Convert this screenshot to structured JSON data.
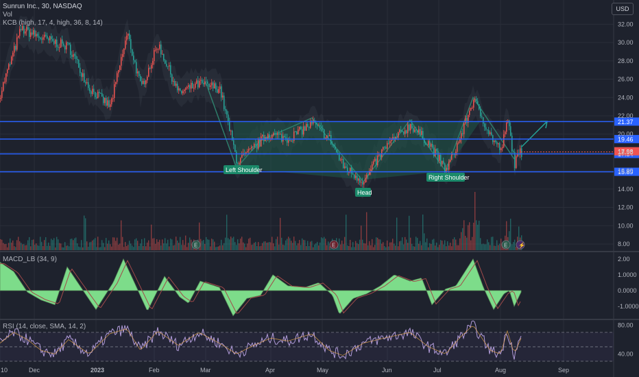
{
  "header": {
    "symbol_line": "Sunrun Inc., 30, NASDAQ",
    "vol_label": "Vol",
    "indicator_line": "KCB (high, 17, 4, high, 36, 8, 14)",
    "currency": "USD"
  },
  "indicators": {
    "macd_label": "MACD_LB (34, 9)",
    "rsi_label": "RSI (14, close, SMA, 14, 2)"
  },
  "colors": {
    "background": "#1e222d",
    "grid": "#2a2e39",
    "horizontal_line": "#2962ff",
    "up": "#ef5350",
    "down": "#26a69a",
    "pattern_fill": "#1f5a4a",
    "label_bg": "#1b8a6a",
    "macd_fill": "#7ddc8a",
    "rsi_line": "#b39ddb"
  },
  "chart_data": {
    "type": "candlestick",
    "title": "Sunrun Inc., 30, NASDAQ",
    "x_tick_labels": [
      "10",
      "Dec",
      "2023",
      "Feb",
      "Mar",
      "Apr",
      "May",
      "Jun",
      "Jul",
      "Aug",
      "Sep"
    ],
    "x_ticks_idx": [
      0,
      50,
      140,
      225,
      300,
      395,
      470,
      565,
      640,
      730,
      822
    ],
    "price_axis": {
      "ylim": [
        7.4,
        34.2
      ],
      "tick_labels": [
        "32.00",
        "30.00",
        "28.00",
        "26.00",
        "24.00",
        "22.00",
        "20.00",
        "18.00",
        "16.00",
        "14.00",
        "12.00",
        "10.00",
        "8.00"
      ]
    },
    "price_lines": [
      {
        "label": "21.37",
        "value": 21.37
      },
      {
        "label": "19.46",
        "value": 19.46
      },
      {
        "label": "17.84",
        "value": 17.84
      },
      {
        "label": "15.89",
        "value": 15.89
      }
    ],
    "last_price": {
      "label": "17.98",
      "value": 17.98
    },
    "price_anchors": [
      [
        0,
        24.5
      ],
      [
        30,
        31.5
      ],
      [
        60,
        30.5
      ],
      [
        100,
        29.5
      ],
      [
        130,
        25.0
      ],
      [
        160,
        23.0
      ],
      [
        185,
        31.0
      ],
      [
        205,
        25.0
      ],
      [
        230,
        29.8
      ],
      [
        260,
        24.5
      ],
      [
        290,
        25.5
      ],
      [
        320,
        25.0
      ],
      [
        345,
        17.0
      ],
      [
        360,
        17.8
      ],
      [
        390,
        20.0
      ],
      [
        420,
        19.5
      ],
      [
        455,
        21.2
      ],
      [
        480,
        19.5
      ],
      [
        500,
        16.5
      ],
      [
        530,
        14.8
      ],
      [
        560,
        18.5
      ],
      [
        598,
        21.0
      ],
      [
        625,
        19.0
      ],
      [
        650,
        16.0
      ],
      [
        670,
        19.5
      ],
      [
        690,
        23.8
      ],
      [
        715,
        19.8
      ],
      [
        730,
        18.2
      ],
      [
        740,
        21.5
      ],
      [
        750,
        16.8
      ],
      [
        758,
        18.0
      ]
    ],
    "pattern_labels": [
      "Left Shoulder",
      "Head",
      "Right Shoulder"
    ],
    "macd": {
      "label": "MACD_LB (34, 9)",
      "tick_labels": [
        "2.00",
        "1.0000",
        "0.0000",
        "-1.0000"
      ],
      "ylim": [
        -1.7,
        2.3
      ],
      "anchors": [
        [
          0,
          1.8
        ],
        [
          20,
          1.2
        ],
        [
          40,
          -0.1
        ],
        [
          60,
          -0.6
        ],
        [
          80,
          -0.9
        ],
        [
          98,
          1.5
        ],
        [
          115,
          0.4
        ],
        [
          140,
          -1.2
        ],
        [
          165,
          0.5
        ],
        [
          180,
          2.0
        ],
        [
          195,
          0.6
        ],
        [
          215,
          -1.3
        ],
        [
          240,
          0.9
        ],
        [
          262,
          -0.4
        ],
        [
          275,
          -0.8
        ],
        [
          292,
          0.6
        ],
        [
          320,
          0.2
        ],
        [
          340,
          -1.6
        ],
        [
          360,
          -0.5
        ],
        [
          380,
          -0.3
        ],
        [
          398,
          1.0
        ],
        [
          420,
          0.3
        ],
        [
          445,
          0.2
        ],
        [
          465,
          0.5
        ],
        [
          485,
          -0.3
        ],
        [
          495,
          -1.5
        ],
        [
          515,
          -0.5
        ],
        [
          535,
          -0.2
        ],
        [
          555,
          0.3
        ],
        [
          575,
          1.0
        ],
        [
          598,
          0.6
        ],
        [
          615,
          0.8
        ],
        [
          630,
          -0.9
        ],
        [
          650,
          0.1
        ],
        [
          665,
          0.3
        ],
        [
          690,
          2.0
        ],
        [
          705,
          0.2
        ],
        [
          720,
          -1.2
        ],
        [
          735,
          -0.2
        ],
        [
          743,
          0.0
        ],
        [
          750,
          -1.0
        ],
        [
          760,
          -0.1
        ]
      ]
    },
    "rsi": {
      "label": "RSI (14, close, SMA, 14, 2)",
      "tick_labels": [
        "80.00",
        "40.00"
      ],
      "ylim": [
        30,
        86
      ],
      "levels": [
        70,
        50,
        30
      ],
      "anchors": [
        [
          0,
          55
        ],
        [
          20,
          70
        ],
        [
          40,
          60
        ],
        [
          60,
          45
        ],
        [
          80,
          40
        ],
        [
          100,
          60
        ],
        [
          130,
          40
        ],
        [
          160,
          68
        ],
        [
          185,
          75
        ],
        [
          205,
          45
        ],
        [
          230,
          72
        ],
        [
          260,
          52
        ],
        [
          290,
          70
        ],
        [
          320,
          55
        ],
        [
          345,
          40
        ],
        [
          370,
          52
        ],
        [
          395,
          62
        ],
        [
          420,
          58
        ],
        [
          455,
          68
        ],
        [
          480,
          45
        ],
        [
          500,
          38
        ],
        [
          530,
          55
        ],
        [
          560,
          62
        ],
        [
          598,
          70
        ],
        [
          625,
          50
        ],
        [
          650,
          40
        ],
        [
          670,
          62
        ],
        [
          690,
          80
        ],
        [
          715,
          45
        ],
        [
          730,
          40
        ],
        [
          740,
          72
        ],
        [
          750,
          40
        ],
        [
          760,
          62
        ]
      ]
    }
  }
}
